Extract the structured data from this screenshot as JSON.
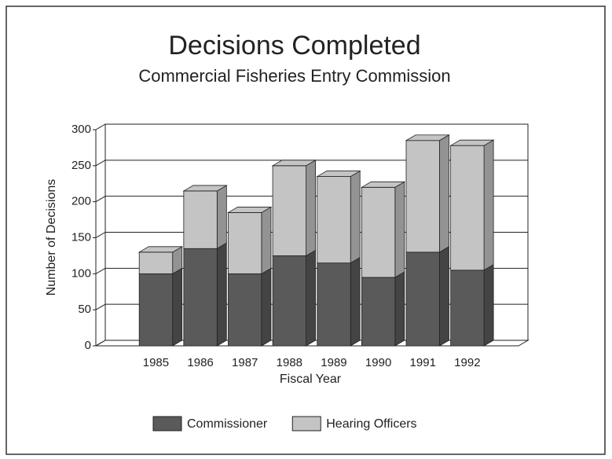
{
  "chart_data": {
    "type": "stacked_bar_3d",
    "title": "Decisions Completed",
    "subtitle": "Commercial Fisheries Entry Commission",
    "x_label": "Fiscal Year",
    "y_label": "Number of Decisions",
    "categories": [
      "1985",
      "1986",
      "1987",
      "1988",
      "1989",
      "1990",
      "1991",
      "1992"
    ],
    "series": [
      {
        "name": "Commissioner",
        "color": "#5a5a5a",
        "values": [
          100,
          135,
          100,
          125,
          115,
          95,
          130,
          105
        ]
      },
      {
        "name": "Hearing Officers",
        "color": "#c4c4c4",
        "values": [
          30,
          80,
          85,
          125,
          120,
          125,
          155,
          173
        ]
      }
    ],
    "ylim": [
      0,
      300
    ],
    "yticks": [
      0,
      50,
      100,
      150,
      200,
      250,
      300
    ],
    "grid": true,
    "legend": "bottom"
  }
}
